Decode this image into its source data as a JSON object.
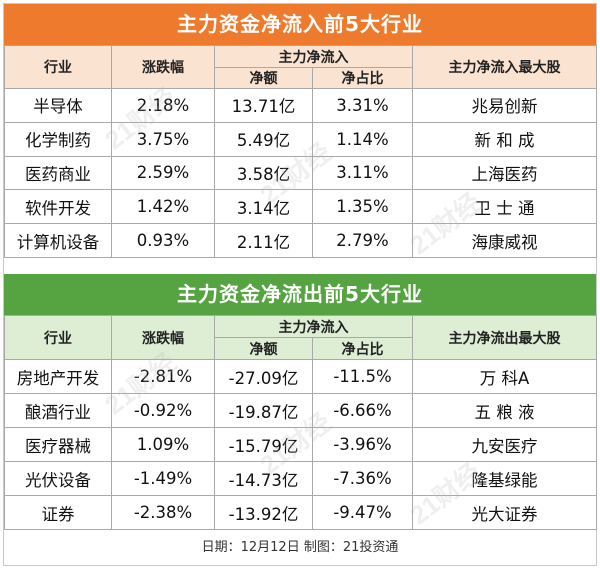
{
  "inflow": {
    "title": "主力资金净流入前5大行业",
    "headers": {
      "industry": "行业",
      "change": "涨跌幅",
      "main_group": "主力净流入",
      "net": "净额",
      "ratio": "净占比",
      "top_stock": "主力净流入最大股"
    },
    "rows": [
      {
        "industry": "半导体",
        "change": "2.18%",
        "net": "13.71亿",
        "ratio": "3.31%",
        "stock": "兆易创新"
      },
      {
        "industry": "化学制药",
        "change": "3.75%",
        "net": "5.49亿",
        "ratio": "1.14%",
        "stock": "新 和 成"
      },
      {
        "industry": "医药商业",
        "change": "2.59%",
        "net": "3.58亿",
        "ratio": "3.11%",
        "stock": "上海医药"
      },
      {
        "industry": "软件开发",
        "change": "1.42%",
        "net": "3.14亿",
        "ratio": "1.35%",
        "stock": "卫 士 通"
      },
      {
        "industry": "计算机设备",
        "change": "0.93%",
        "net": "2.11亿",
        "ratio": "2.79%",
        "stock": "海康威视"
      }
    ]
  },
  "outflow": {
    "title": "主力资金净流出前5大行业",
    "headers": {
      "industry": "行业",
      "change": "涨跌幅",
      "main_group": "主力净流入",
      "net": "净额",
      "ratio": "净占比",
      "top_stock": "主力净流出最大股"
    },
    "rows": [
      {
        "industry": "房地产开发",
        "change": "-2.81%",
        "net": "-27.09亿",
        "ratio": "-11.5%",
        "stock": "万 科A"
      },
      {
        "industry": "酿酒行业",
        "change": "-0.92%",
        "net": "-19.87亿",
        "ratio": "-6.66%",
        "stock": "五 粮 液"
      },
      {
        "industry": "医疗器械",
        "change": "1.09%",
        "net": "-15.79亿",
        "ratio": "-3.96%",
        "stock": "九安医疗"
      },
      {
        "industry": "光伏设备",
        "change": "-1.49%",
        "net": "-14.73亿",
        "ratio": "-7.36%",
        "stock": "隆基绿能"
      },
      {
        "industry": "证券",
        "change": "-2.38%",
        "net": "-13.92亿",
        "ratio": "-9.47%",
        "stock": "光大证券"
      }
    ]
  },
  "footer": "日期：12月12日 制图：21投资通",
  "watermark": "21财经",
  "colors": {
    "inflow_banner": "#ee7b2d",
    "inflow_header": "#fbe3d2",
    "outflow_banner": "#55a341",
    "outflow_header": "#ddeed5"
  }
}
